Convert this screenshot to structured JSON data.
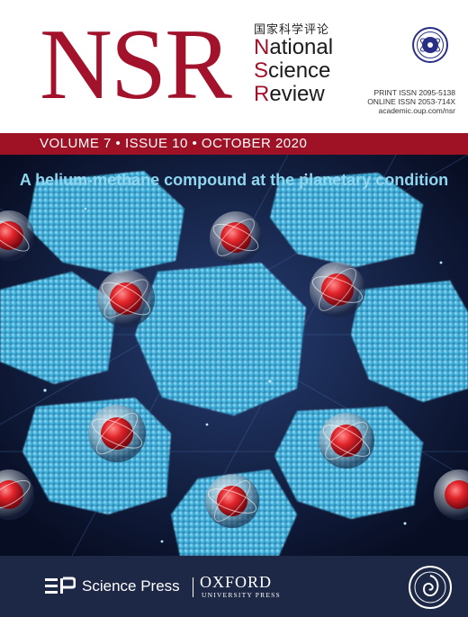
{
  "masthead": {
    "logo": "NSR",
    "chinese_title": "国家科学评论",
    "name_line1_cap": "N",
    "name_line1_rest": "ational",
    "name_line2_cap": "S",
    "name_line2_rest": "cience",
    "name_line3_cap": "R",
    "name_line3_rest": "eview",
    "print_issn": "PRINT ISSN 2095-5138",
    "online_issn": "ONLINE ISSN 2053-714X",
    "website": "academic.oup.com/nsr"
  },
  "issue_band": {
    "text": "VOLUME 7 • ISSUE 10 • OCTOBER 2020"
  },
  "cover_art": {
    "headline": "A helium-methane compound at the planetary condition",
    "icons": [
      "molecule-icon",
      "helium-cluster-icon"
    ]
  },
  "publishers": {
    "science_press": "Science Press",
    "oxford": "OXFORD",
    "oup": "UNIVERSITY PRESS",
    "icons": [
      "science-press-logo-icon",
      "oxford-seal-icon",
      "cas-emblem-icon"
    ]
  },
  "colors": {
    "brand_red": "#a3122b",
    "band_red": "#9f1226",
    "background_navy": "#0b1530",
    "cluster_blue": "#3ba7d0",
    "headline_blue": "#8fd6ef",
    "footer_navy": "#1d2846"
  }
}
